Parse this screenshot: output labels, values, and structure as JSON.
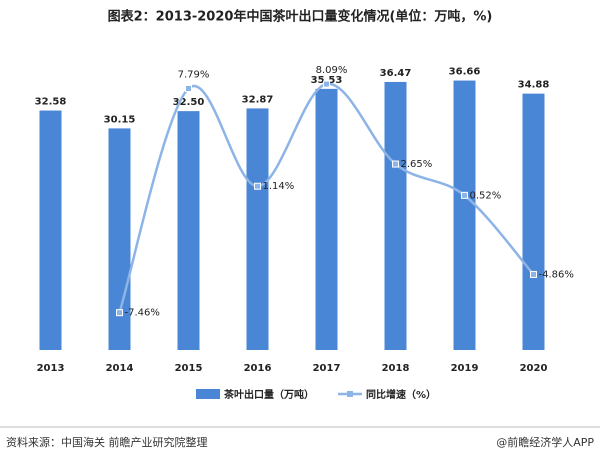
{
  "chart_data": {
    "type": "bar-line",
    "title": "图表2：2013-2020年中国茶叶出口量变化情况(单位：万吨，%)",
    "categories": [
      "2013",
      "2014",
      "2015",
      "2016",
      "2017",
      "2018",
      "2019",
      "2020"
    ],
    "series": [
      {
        "name": "茶叶出口量（万吨）",
        "type": "bar",
        "color": "#4a86d6",
        "values": [
          32.58,
          30.15,
          32.5,
          32.87,
          35.53,
          36.47,
          36.66,
          34.88
        ],
        "value_labels": [
          "32.58",
          "30.15",
          "32.50",
          "32.87",
          "35.53",
          "36.47",
          "36.66",
          "34.88"
        ]
      },
      {
        "name": "同比增速（%）",
        "type": "line",
        "axis": "y2",
        "color": "#8db4e6",
        "values": [
          null,
          -7.46,
          7.79,
          1.14,
          8.09,
          2.65,
          0.52,
          -4.86
        ],
        "value_labels": [
          null,
          "-7.46%",
          "7.79%",
          "1.14%",
          "8.09%",
          "2.65%",
          "0.52%",
          "-4.86%"
        ]
      }
    ],
    "ylim": [
      0,
      40
    ],
    "y2lim": [
      -10,
      10
    ],
    "grid": false,
    "legend": "bottom"
  },
  "footer": {
    "source": "资料来源：中国海关 前瞻产业研究院整理",
    "brand": "@前瞻经济学人APP"
  }
}
